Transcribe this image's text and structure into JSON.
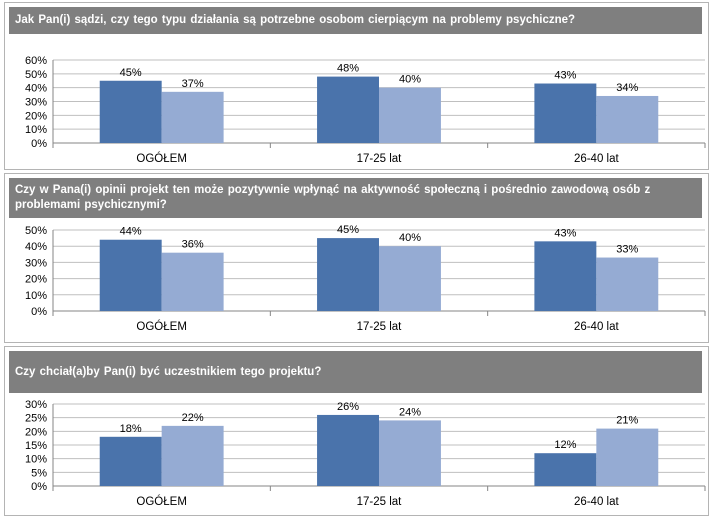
{
  "colors": {
    "series1": "#4a73ab",
    "series2": "#95abd3",
    "grid": "#bfbfbf",
    "header_bg": "#7f7f7f"
  },
  "chart_data": [
    {
      "type": "bar",
      "title": "Jak Pan(i) sądzi, czy tego typu działania  są potrzebne osobom cierpiącym  na problemy psychiczne?",
      "categories": [
        "OGÓŁEM",
        "17-25 lat",
        "26-40 lat"
      ],
      "series": [
        {
          "values": [
            45,
            48,
            43
          ],
          "labels": [
            "45%",
            "48%",
            "43%"
          ]
        },
        {
          "values": [
            37,
            40,
            34
          ],
          "labels": [
            "37%",
            "40%",
            "34%"
          ]
        }
      ],
      "ylim": [
        0,
        60
      ],
      "yticks": [
        "0%",
        "10%",
        "20%",
        "30%",
        "40%",
        "50%",
        "60%"
      ],
      "grid": true
    },
    {
      "type": "bar",
      "title": "Czy w Pana(i) opinii projekt ten może pozytywnie wpłynąć na aktywność społeczną i pośrednio zawodową osób z problemami psychicznymi?",
      "categories": [
        "OGÓŁEM",
        "17-25 lat",
        "26-40 lat"
      ],
      "series": [
        {
          "values": [
            44,
            45,
            43
          ],
          "labels": [
            "44%",
            "45%",
            "43%"
          ]
        },
        {
          "values": [
            36,
            40,
            33
          ],
          "labels": [
            "36%",
            "40%",
            "33%"
          ]
        }
      ],
      "ylim": [
        0,
        50
      ],
      "yticks": [
        "0%",
        "10%",
        "20%",
        "30%",
        "40%",
        "50%"
      ],
      "grid": true
    },
    {
      "type": "bar",
      "title": "Czy chciał(a)by  Pan(i) być uczestnikiem  tego projektu?",
      "categories": [
        "OGÓŁEM",
        "17-25 lat",
        "26-40 lat"
      ],
      "series": [
        {
          "values": [
            18,
            26,
            12
          ],
          "labels": [
            "18%",
            "26%",
            "12%"
          ]
        },
        {
          "values": [
            22,
            24,
            21
          ],
          "labels": [
            "22%",
            "24%",
            "21%"
          ]
        }
      ],
      "ylim": [
        0,
        30
      ],
      "yticks": [
        "0%",
        "5%",
        "10%",
        "15%",
        "20%",
        "25%",
        "30%"
      ],
      "grid": true
    }
  ]
}
